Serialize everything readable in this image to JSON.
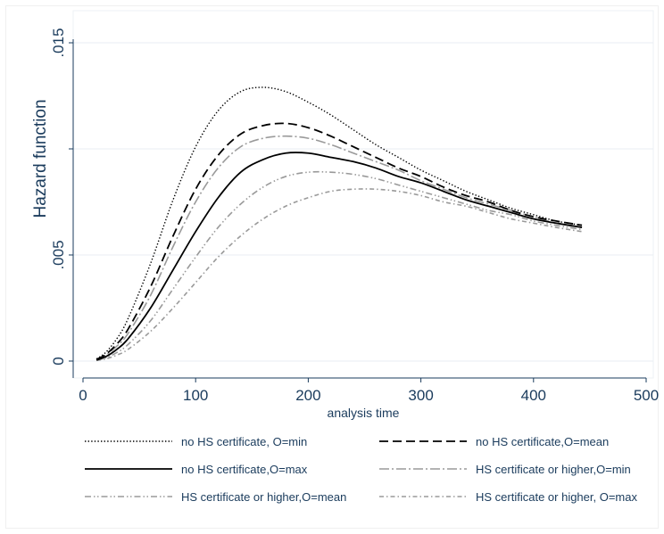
{
  "chart_data": {
    "type": "line",
    "title": "",
    "xlabel": "analysis time",
    "ylabel": "Hazard function",
    "xlim": [
      0,
      500
    ],
    "ylim": [
      0,
      0.015
    ],
    "x_ticks": [
      0,
      100,
      200,
      300,
      400,
      500
    ],
    "x_tick_labels": [
      "0",
      "100",
      "200",
      "300",
      "400",
      "500"
    ],
    "y_ticks": [
      0,
      0.005,
      0.01,
      0.015
    ],
    "y_tick_labels": [
      "0",
      ".005",
      "",
      ".015"
    ],
    "grid": "horizontal",
    "legend_position": "bottom",
    "x": [
      12,
      20,
      30,
      40,
      60,
      80,
      100,
      120,
      140,
      160,
      180,
      200,
      220,
      240,
      260,
      280,
      300,
      320,
      340,
      360,
      380,
      400,
      420,
      443
    ],
    "series": [
      {
        "name": "no HS certificate, O=min",
        "color": "#000000",
        "dash": "dotted",
        "values": [
          0.0001,
          0.0004,
          0.00105,
          0.002,
          0.0046,
          0.0076,
          0.0101,
          0.0118,
          0.0127,
          0.0129,
          0.0127,
          0.0122,
          0.0116,
          0.0109,
          0.0102,
          0.0096,
          0.009,
          0.0085,
          0.008,
          0.0076,
          0.0072,
          0.0069,
          0.0066,
          0.0064
        ]
      },
      {
        "name": "no HS certificate,O=mean",
        "color": "#000000",
        "dash": "long-dash",
        "values": [
          8e-05,
          0.0003,
          0.0008,
          0.0015,
          0.0035,
          0.0059,
          0.0081,
          0.0097,
          0.0107,
          0.0111,
          0.0112,
          0.011,
          0.0106,
          0.0101,
          0.0096,
          0.0091,
          0.0087,
          0.0082,
          0.0078,
          0.0075,
          0.0071,
          0.0068,
          0.0066,
          0.0064
        ]
      },
      {
        "name": "no HS certificate,O=max",
        "color": "#000000",
        "dash": "solid",
        "values": [
          5e-05,
          0.0002,
          0.00055,
          0.00105,
          0.0025,
          0.0043,
          0.0061,
          0.0077,
          0.0089,
          0.0095,
          0.0098,
          0.0098,
          0.0096,
          0.0094,
          0.0091,
          0.0087,
          0.0084,
          0.008,
          0.0076,
          0.0073,
          0.007,
          0.0067,
          0.0065,
          0.0063
        ]
      },
      {
        "name": "HS certificate or higher,O=min",
        "color": "#9a9a9a",
        "dash": "long-dash-dot",
        "values": [
          7e-05,
          0.00027,
          0.0007,
          0.0013,
          0.0031,
          0.0054,
          0.0075,
          0.0091,
          0.0101,
          0.0105,
          0.0106,
          0.0105,
          0.0102,
          0.0098,
          0.0094,
          0.009,
          0.0085,
          0.0081,
          0.0077,
          0.0074,
          0.0071,
          0.0068,
          0.0065,
          0.0063
        ]
      },
      {
        "name": "HS certificate or higher,O=mean",
        "color": "#9a9a9a",
        "dash": "dash-dot-dot",
        "values": [
          4e-05,
          0.00015,
          0.0004,
          0.00078,
          0.0019,
          0.0034,
          0.0049,
          0.0063,
          0.0074,
          0.0082,
          0.0087,
          0.0089,
          0.0089,
          0.0088,
          0.0086,
          0.0083,
          0.008,
          0.0077,
          0.0074,
          0.0071,
          0.0069,
          0.0066,
          0.0064,
          0.0062
        ]
      },
      {
        "name": "HS certificate or higher, O=max",
        "color": "#9a9a9a",
        "dash": "dash-dot",
        "values": [
          3e-05,
          0.0001,
          0.00028,
          0.00055,
          0.0014,
          0.0025,
          0.0037,
          0.0049,
          0.0059,
          0.0067,
          0.0073,
          0.0077,
          0.008,
          0.0081,
          0.0081,
          0.008,
          0.0078,
          0.0075,
          0.0073,
          0.007,
          0.0067,
          0.0065,
          0.0063,
          0.0061
        ]
      }
    ]
  }
}
